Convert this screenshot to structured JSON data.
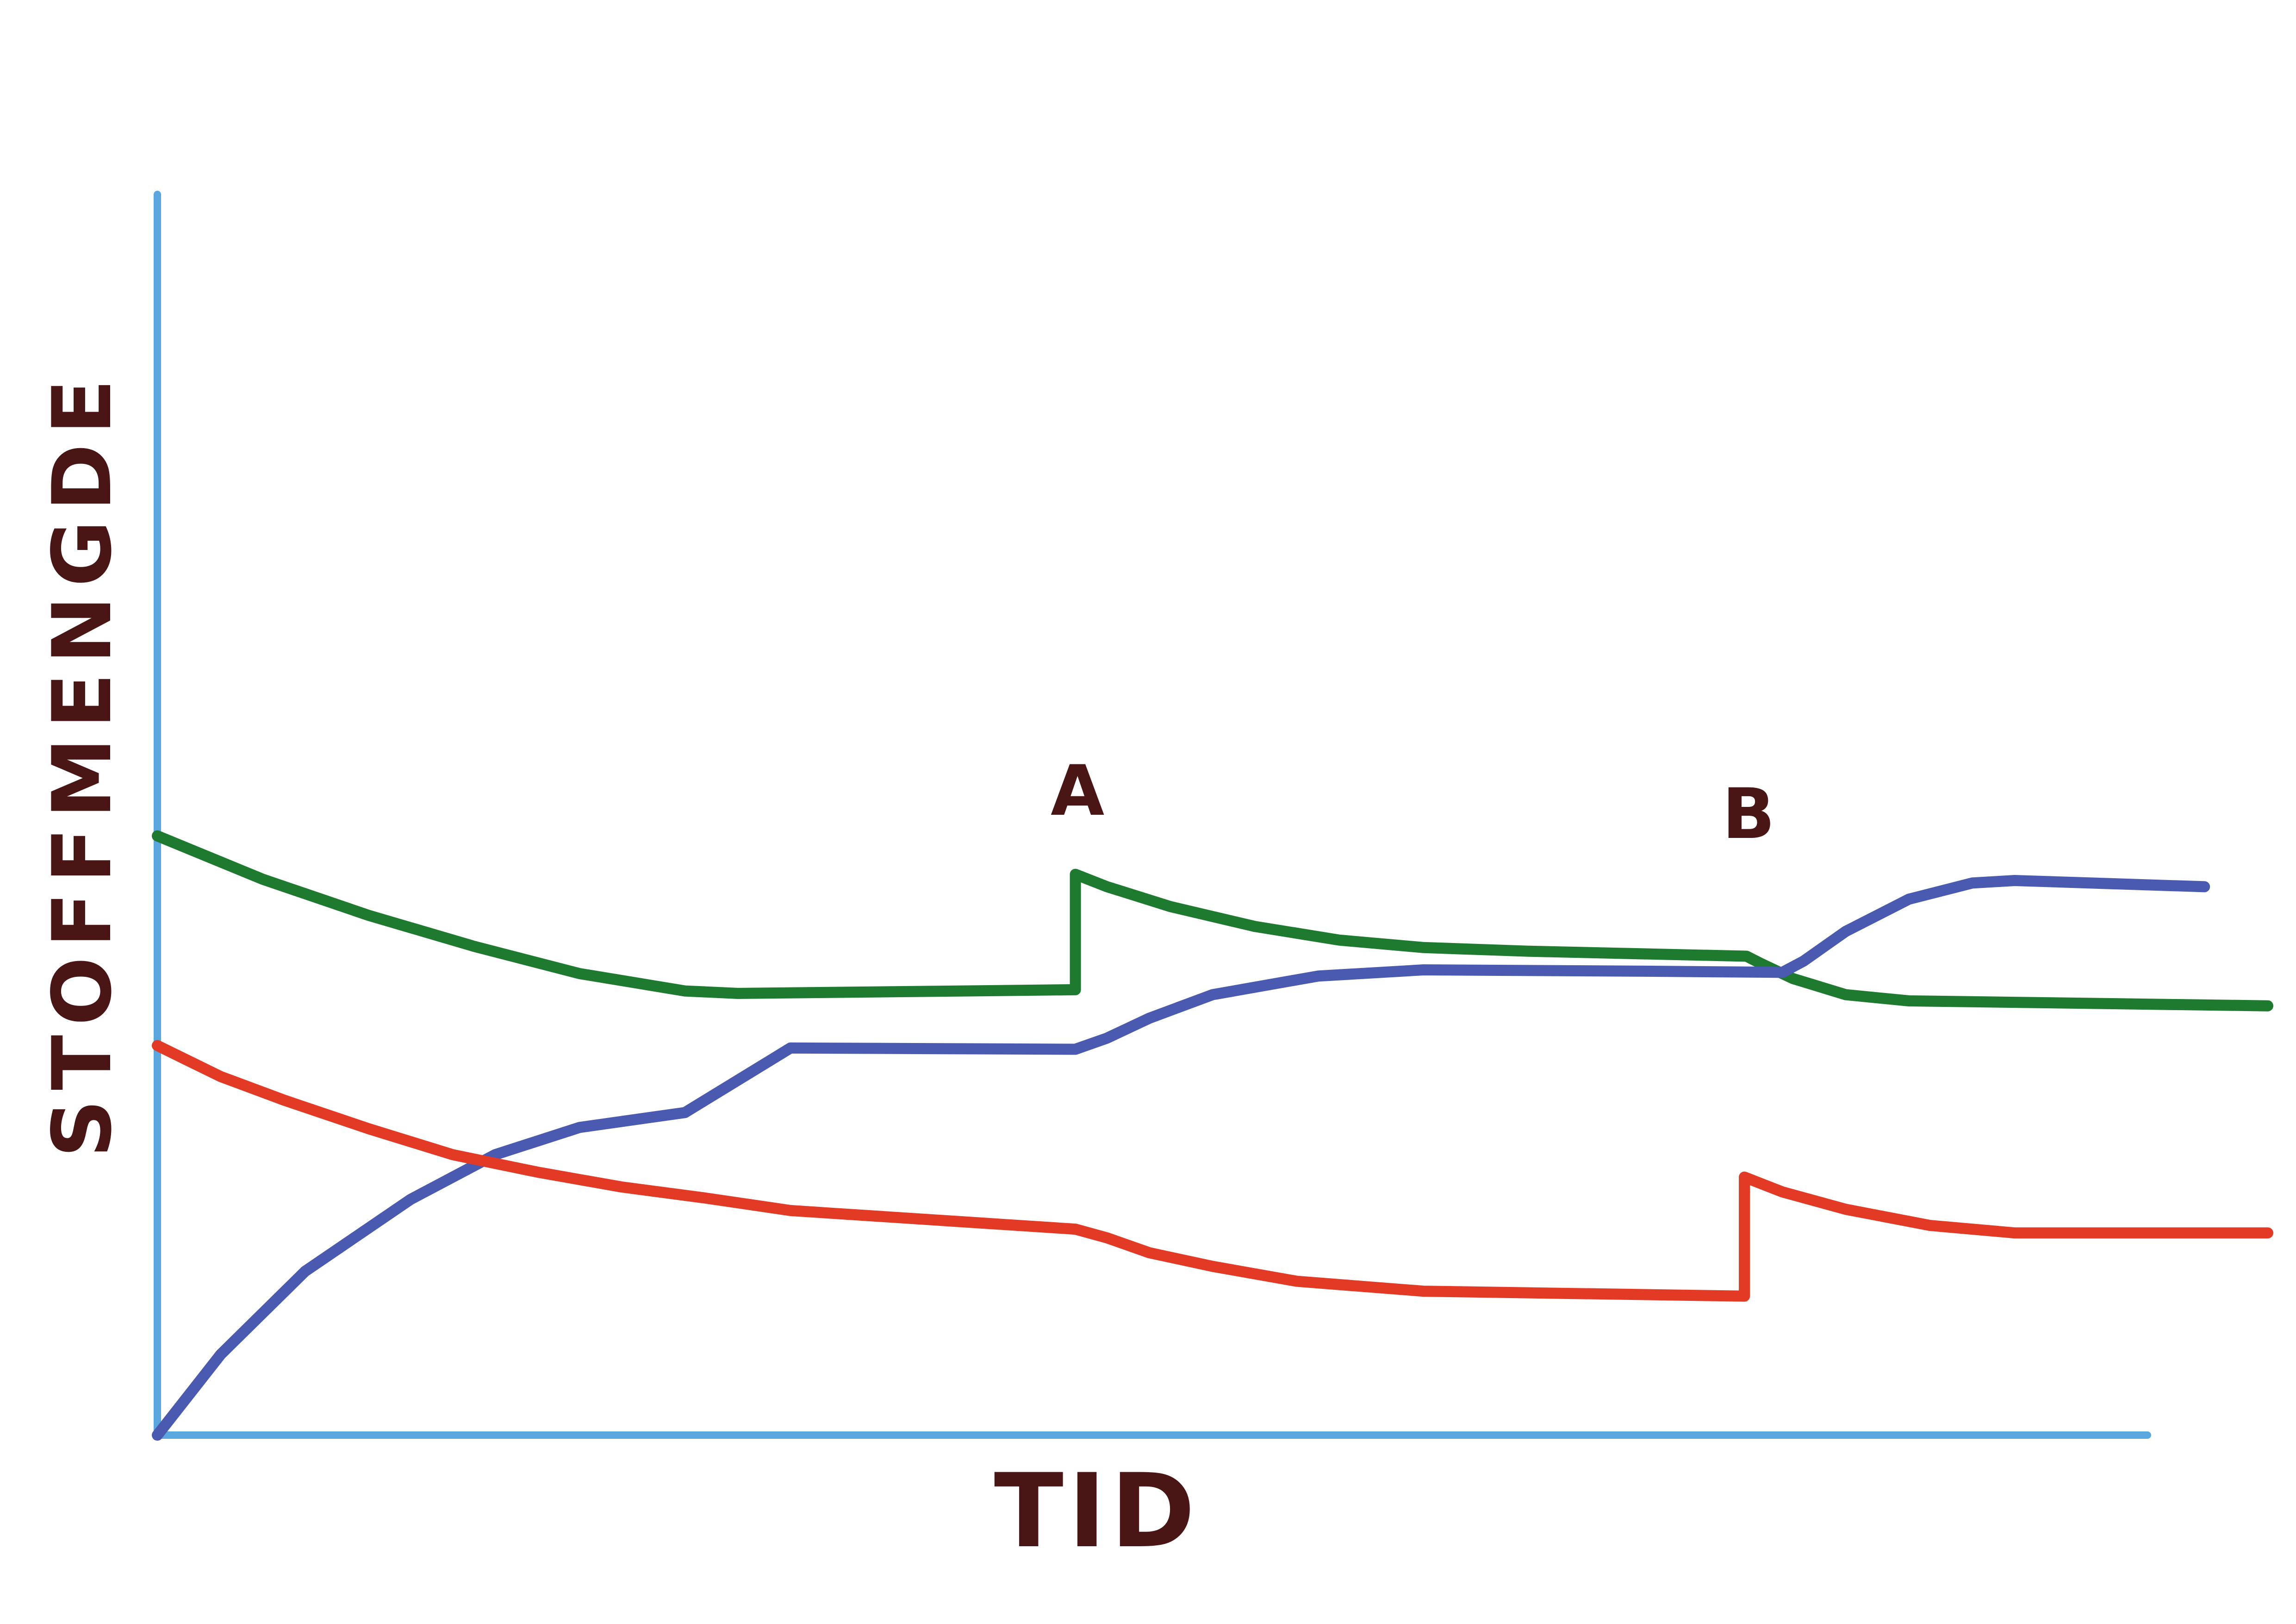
{
  "chart_data": {
    "type": "line",
    "title": "",
    "xlabel": "TID",
    "ylabel": "STOFFMENGDE",
    "xlim": [
      0,
      100
    ],
    "ylim": [
      0,
      100
    ],
    "grid": false,
    "legend": "none",
    "annotations": [
      {
        "text": "A",
        "x": 43.6
      },
      {
        "text": "B",
        "x": 75.4
      }
    ],
    "series": [
      {
        "color": "#1e7a2e",
        "points": [
          [
            0,
            48.3
          ],
          [
            5,
            44.8
          ],
          [
            10,
            41.9
          ],
          [
            15,
            39.4
          ],
          [
            20,
            37.2
          ],
          [
            25,
            35.8
          ],
          [
            27.5,
            35.6
          ],
          [
            43.5,
            35.9
          ],
          [
            43.5,
            45.2
          ],
          [
            45,
            44.2
          ],
          [
            48,
            42.6
          ],
          [
            52,
            41.0
          ],
          [
            56,
            39.9
          ],
          [
            60,
            39.3
          ],
          [
            65,
            39.0
          ],
          [
            75.3,
            38.6
          ],
          [
            76,
            38.0
          ],
          [
            77.5,
            36.8
          ],
          [
            80,
            35.5
          ],
          [
            83,
            35.0
          ],
          [
            100,
            34.6
          ]
        ]
      },
      {
        "color": "#4a5ab0",
        "points": [
          [
            0,
            0
          ],
          [
            3,
            6.5
          ],
          [
            7,
            13.2
          ],
          [
            12,
            19.0
          ],
          [
            16,
            22.6
          ],
          [
            20,
            24.8
          ],
          [
            25,
            26.0
          ],
          [
            30,
            31.2
          ],
          [
            43.5,
            31.1
          ],
          [
            45,
            32.0
          ],
          [
            47,
            33.6
          ],
          [
            50,
            35.5
          ],
          [
            55,
            37.0
          ],
          [
            60,
            37.5
          ],
          [
            70,
            37.4
          ],
          [
            77,
            37.3
          ],
          [
            78,
            38.2
          ],
          [
            80,
            40.6
          ],
          [
            83,
            43.2
          ],
          [
            86,
            44.5
          ],
          [
            88,
            44.7
          ],
          [
            97,
            44.2
          ]
        ]
      },
      {
        "color": "#e33a26",
        "points": [
          [
            0,
            31.4
          ],
          [
            3,
            28.9
          ],
          [
            6,
            27.0
          ],
          [
            10,
            24.7
          ],
          [
            14,
            22.6
          ],
          [
            18,
            21.2
          ],
          [
            22,
            20.0
          ],
          [
            26,
            19.1
          ],
          [
            30,
            18.1
          ],
          [
            43.5,
            16.6
          ],
          [
            45,
            15.9
          ],
          [
            47,
            14.7
          ],
          [
            50,
            13.6
          ],
          [
            54,
            12.4
          ],
          [
            60,
            11.6
          ],
          [
            75.2,
            11.2
          ],
          [
            75.2,
            20.8
          ],
          [
            77,
            19.6
          ],
          [
            80,
            18.2
          ],
          [
            84,
            16.9
          ],
          [
            88,
            16.3
          ],
          [
            100,
            16.3
          ]
        ]
      }
    ]
  }
}
